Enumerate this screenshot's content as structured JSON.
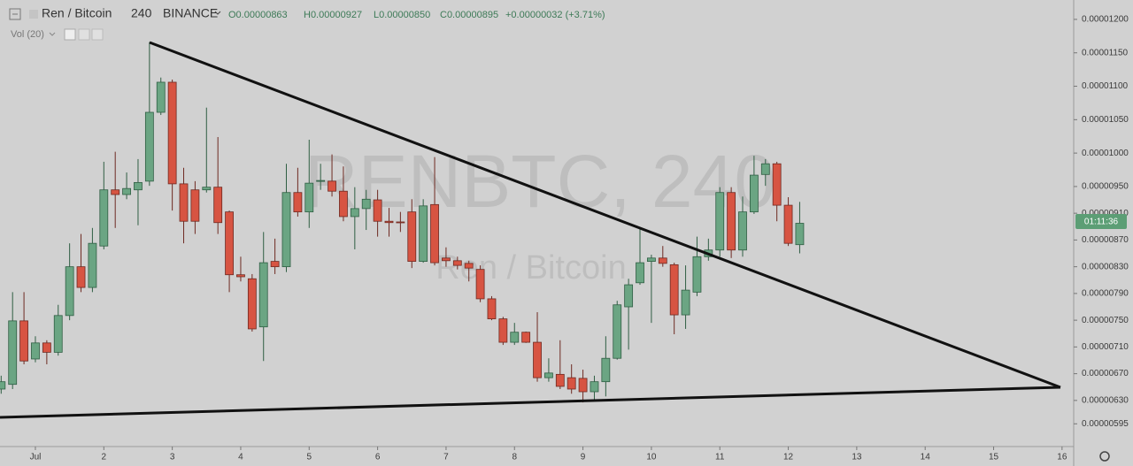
{
  "chart_data": {
    "type": "candlestick",
    "symbol": "Ren / Bitcoin",
    "interval": "240",
    "exchange": "BINANCE",
    "ohlc_labels": [
      "O0.00000863",
      "H0.00000927",
      "L0.00000850",
      "C0.00000895",
      "+0.00000032 (+3.71%)"
    ],
    "volume_label": "Vol (20)",
    "watermark": "RENBTC, 240",
    "watermark_subtitle": "Ren / Bitcoin",
    "countdown": "01:11:36",
    "up_color": "#6ba583",
    "down_color": "#d75442",
    "countdown_color": "#5c9e75",
    "xlim": [
      0.483,
      16.17
    ],
    "xticks": [
      {
        "value": 1,
        "label": "Jul"
      },
      2,
      3,
      4,
      5,
      6,
      7,
      8,
      9,
      10,
      11,
      12,
      13,
      14,
      15,
      16
    ],
    "ylim": [
      5.61e-06,
      1.229e-05
    ],
    "yticks": [
      {
        "value": 1.2e-05,
        "label": "0.00001200"
      },
      {
        "value": 1.15e-05,
        "label": "0.00001150"
      },
      {
        "value": 1.1e-05,
        "label": "0.00001100"
      },
      {
        "value": 1.05e-05,
        "label": "0.00001050"
      },
      {
        "value": 1e-05,
        "label": "0.00001000"
      },
      {
        "value": 9.5e-06,
        "label": "0.00000950"
      },
      {
        "value": 9.1e-06,
        "label": "0.00000910"
      },
      {
        "value": 8.7e-06,
        "label": "0.00000870"
      },
      {
        "value": 8.3e-06,
        "label": "0.00000830"
      },
      {
        "value": 7.9e-06,
        "label": "0.00000790"
      },
      {
        "value": 7.5e-06,
        "label": "0.00000750"
      },
      {
        "value": 7.1e-06,
        "label": "0.00000710"
      },
      {
        "value": 6.7e-06,
        "label": "0.00000670"
      },
      {
        "value": 6.3e-06,
        "label": "0.00000630"
      },
      {
        "value": 5.95e-06,
        "label": "0.00000595"
      }
    ],
    "x": [
      0.5,
      0.6667,
      0.8333,
      1,
      1.1667,
      1.3333,
      1.5,
      1.6667,
      1.8333,
      2,
      2.1667,
      2.3333,
      2.5,
      2.6667,
      2.8333,
      3,
      3.1667,
      3.3333,
      3.5,
      3.6667,
      3.8333,
      4,
      4.1667,
      4.3333,
      4.5,
      4.6667,
      4.8333,
      5,
      5.1667,
      5.3333,
      5.5,
      5.6667,
      5.8333,
      6,
      6.1667,
      6.3333,
      6.5,
      6.6667,
      6.8333,
      7,
      7.1667,
      7.3333,
      7.5,
      7.6667,
      7.8333,
      8,
      8.1667,
      8.3333,
      8.5,
      8.6667,
      8.8333,
      9,
      9.1667,
      9.3333,
      9.5,
      9.6667,
      9.8333,
      10,
      10.1667,
      10.3333,
      10.5,
      10.6667,
      10.8333,
      11,
      11.1667,
      11.3333,
      11.5,
      11.6667,
      11.8333,
      12,
      12.1667
    ],
    "open": [
      6.47e-06,
      6.54e-06,
      7.49e-06,
      6.92e-06,
      7.16e-06,
      7.02e-06,
      7.57e-06,
      8.3e-06,
      7.99e-06,
      8.61e-06,
      9.45e-06,
      9.38e-06,
      9.45e-06,
      9.58e-06,
      1.061e-05,
      1.106e-05,
      9.54e-06,
      9.45e-06,
      9.45e-06,
      9.49e-06,
      9.12e-06,
      8.18e-06,
      8.12e-06,
      7.4e-06,
      8.38e-06,
      8.3e-06,
      9.41e-06,
      9.12e-06,
      9.58e-06,
      9.58e-06,
      9.43e-06,
      9.05e-06,
      9.17e-06,
      9.3e-06,
      8.98e-06,
      8.97e-06,
      9.12e-06,
      8.38e-06,
      9.23e-06,
      8.43e-06,
      8.39e-06,
      8.35e-06,
      8.26e-06,
      7.82e-06,
      7.52e-06,
      7.17e-06,
      7.32e-06,
      7.17e-06,
      6.64e-06,
      6.69e-06,
      6.64e-06,
      6.63e-06,
      6.43e-06,
      6.58e-06,
      6.93e-06,
      7.7e-06,
      8.06e-06,
      8.38e-06,
      8.43e-06,
      8.33e-06,
      7.58e-06,
      7.92e-06,
      8.45e-06,
      8.55e-06,
      9.41e-06,
      8.55e-06,
      9.12e-06,
      9.68e-06,
      9.84e-06,
      9.22e-06,
      8.63e-06
    ],
    "high": [
      6.67e-06,
      7.92e-06,
      7.92e-06,
      7.26e-06,
      7.2e-06,
      7.73e-06,
      8.65e-06,
      8.79e-06,
      8.88e-06,
      9.87e-06,
      1.002e-05,
      9.71e-06,
      9.91e-06,
      1.166e-05,
      1.113e-05,
      1.11e-05,
      9.78e-06,
      9.58e-06,
      1.068e-05,
      1.024e-05,
      9.14e-06,
      8.45e-06,
      8.19e-06,
      8.82e-06,
      8.72e-06,
      9.84e-06,
      9.78e-06,
      1.02e-05,
      9.84e-06,
      9.98e-06,
      9.8e-06,
      9.49e-06,
      9.45e-06,
      9.45e-06,
      9.18e-06,
      9.12e-06,
      9.31e-06,
      9.31e-06,
      9.94e-06,
      8.59e-06,
      8.45e-06,
      8.39e-06,
      8.32e-06,
      7.86e-06,
      7.55e-06,
      7.46e-06,
      7.33e-06,
      7.62e-06,
      6.93e-06,
      7.2e-06,
      6.84e-06,
      6.76e-06,
      6.67e-06,
      7.26e-06,
      7.79e-06,
      8.12e-06,
      8.88e-06,
      8.48e-06,
      8.61e-06,
      8.36e-06,
      8.32e-06,
      8.75e-06,
      8.72e-06,
      9.49e-06,
      9.49e-06,
      9.35e-06,
      9.96e-06,
      9.91e-06,
      9.87e-06,
      9.34e-06,
      9.27e-06
    ],
    "low": [
      6.4e-06,
      6.47e-06,
      6.84e-06,
      6.87e-06,
      6.84e-06,
      6.97e-06,
      7.5e-06,
      7.92e-06,
      7.92e-06,
      8.56e-06,
      8.88e-06,
      9.31e-06,
      8.92e-06,
      9.51e-06,
      1.057e-05,
      9.14e-06,
      8.65e-06,
      8.79e-06,
      9.41e-06,
      8.79e-06,
      7.92e-06,
      8.08e-06,
      7.33e-06,
      6.89e-06,
      8.19e-06,
      8.22e-06,
      9.05e-06,
      8.88e-06,
      9.45e-06,
      9.35e-06,
      8.98e-06,
      8.56e-06,
      8.85e-06,
      8.75e-06,
      8.75e-06,
      8.82e-06,
      8.28e-06,
      8.36e-06,
      8.32e-06,
      8.3e-06,
      8.26e-06,
      8.08e-06,
      7.77e-06,
      7.5e-06,
      7.13e-06,
      7.13e-06,
      7.16e-06,
      6.58e-06,
      6.58e-06,
      6.47e-06,
      6.4e-06,
      6.27e-06,
      6.31e-06,
      6.36e-06,
      6.91e-06,
      7.06e-06,
      8.03e-06,
      7.46e-06,
      8.3e-06,
      7.29e-06,
      7.37e-06,
      7.86e-06,
      8.39e-06,
      8.45e-06,
      8.43e-06,
      8.45e-06,
      9.09e-06,
      9.51e-06,
      8.98e-06,
      8.61e-06,
      8.5e-06
    ],
    "close": [
      6.58e-06,
      7.49e-06,
      6.89e-06,
      7.16e-06,
      7.02e-06,
      7.57e-06,
      8.3e-06,
      7.99e-06,
      8.65e-06,
      9.45e-06,
      9.38e-06,
      9.47e-06,
      9.56e-06,
      1.061e-05,
      1.106e-05,
      9.54e-06,
      8.98e-06,
      8.98e-06,
      9.49e-06,
      8.96e-06,
      8.18e-06,
      8.15e-06,
      7.37e-06,
      8.36e-06,
      8.3e-06,
      9.41e-06,
      9.12e-06,
      9.55e-06,
      9.59e-06,
      9.43e-06,
      9.05e-06,
      9.17e-06,
      9.31e-06,
      8.98e-06,
      8.96e-06,
      8.96e-06,
      8.38e-06,
      9.21e-06,
      8.36e-06,
      8.39e-06,
      8.32e-06,
      8.28e-06,
      7.82e-06,
      7.52e-06,
      7.17e-06,
      7.32e-06,
      7.17e-06,
      6.64e-06,
      6.71e-06,
      6.51e-06,
      6.47e-06,
      6.43e-06,
      6.58e-06,
      6.93e-06,
      7.73e-06,
      8.03e-06,
      8.36e-06,
      8.43e-06,
      8.35e-06,
      7.58e-06,
      7.95e-06,
      8.45e-06,
      8.55e-06,
      9.41e-06,
      8.55e-06,
      9.12e-06,
      9.67e-06,
      9.84e-06,
      9.22e-06,
      8.65e-06,
      8.95e-06
    ]
  }
}
